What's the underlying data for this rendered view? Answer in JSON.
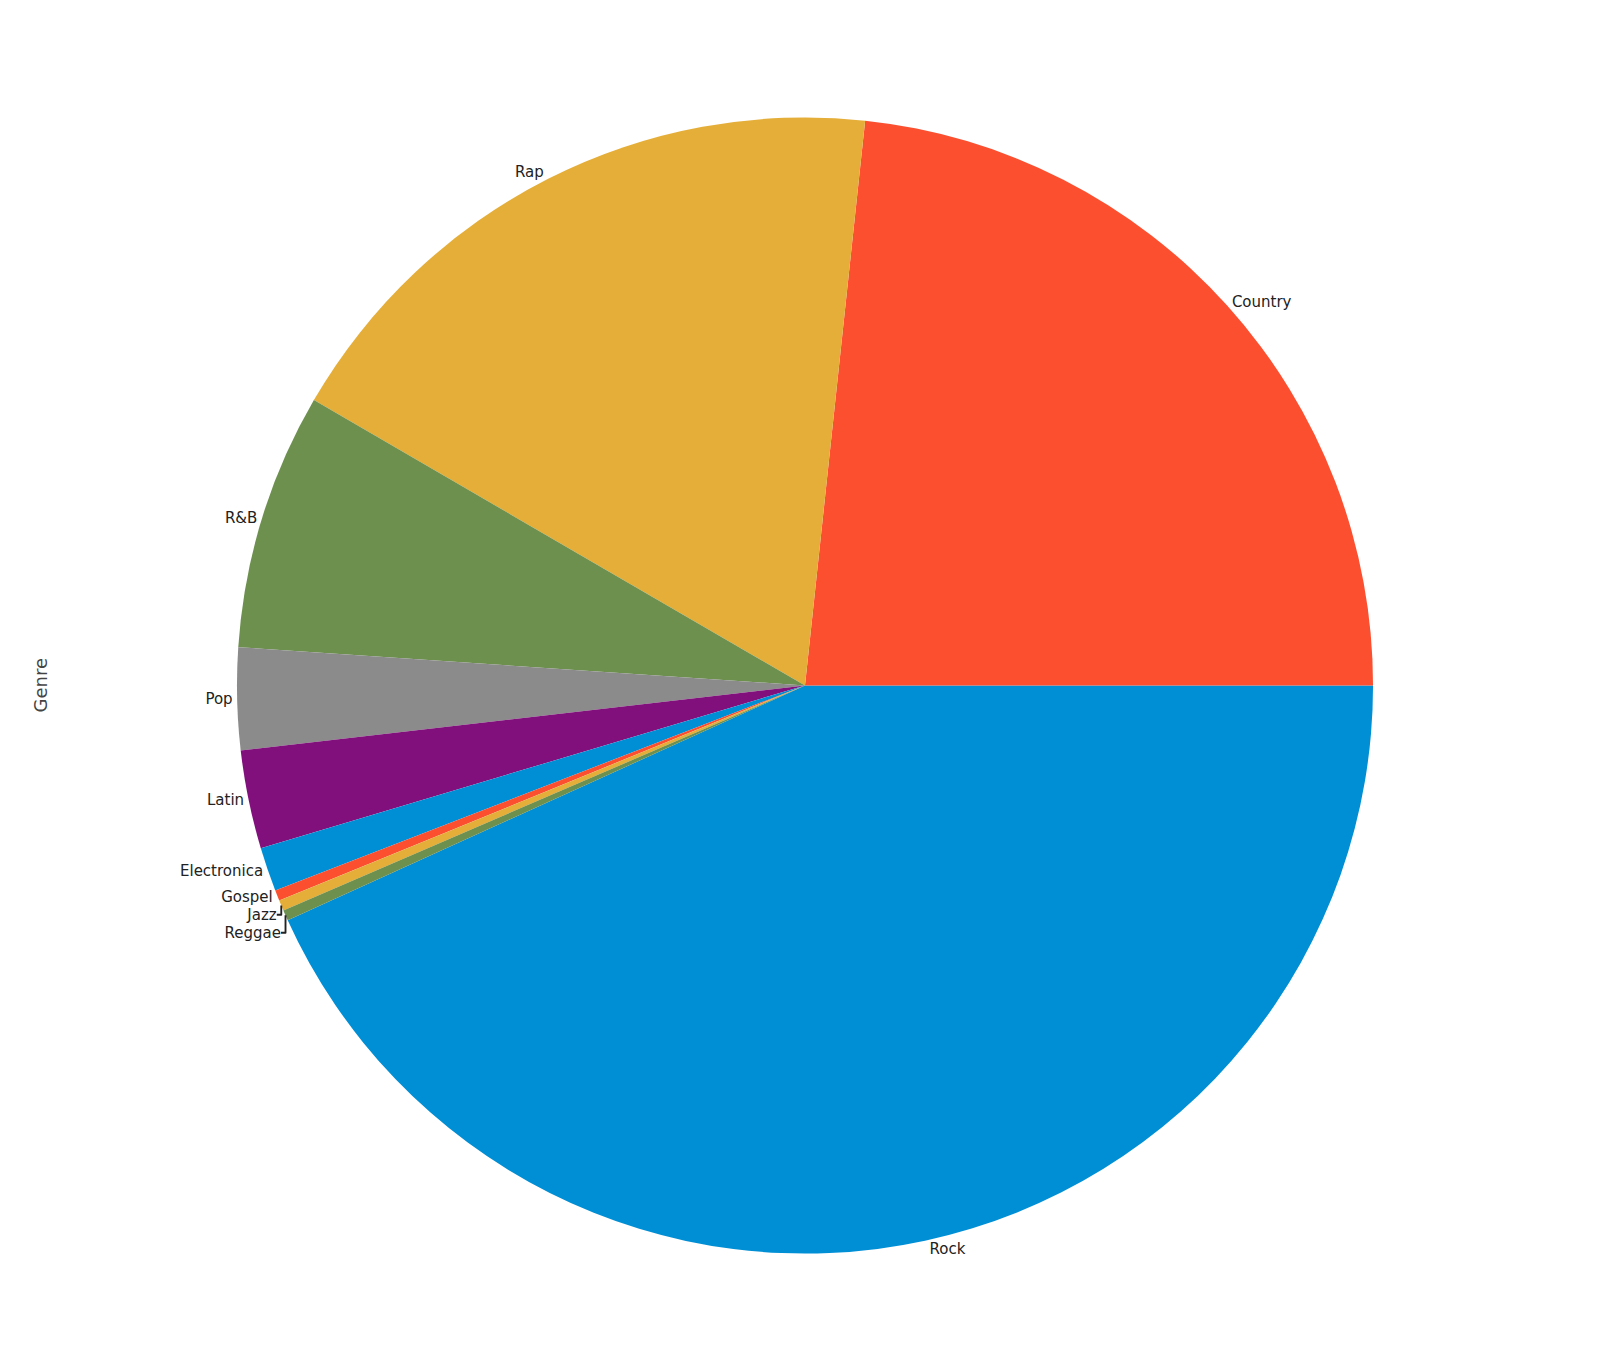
{
  "chart_data": {
    "type": "pie",
    "ylabel": "Genre",
    "categories": [
      "Rock",
      "Country",
      "Rap",
      "R&B",
      "Pop",
      "Latin",
      "Electronica",
      "Gospel",
      "Jazz",
      "Reggae"
    ],
    "values": [
      43.2,
      23.3,
      18.3,
      7.3,
      2.9,
      2.8,
      1.25,
      0.3,
      0.3,
      0.3
    ],
    "colors": [
      "#008fd5",
      "#fc4f30",
      "#e5ae38",
      "#6d904f",
      "#8b8b8b",
      "#810f7c",
      "#008fd5",
      "#fc4f30",
      "#e5ae38",
      "#6d904f"
    ],
    "data_labels": false
  }
}
